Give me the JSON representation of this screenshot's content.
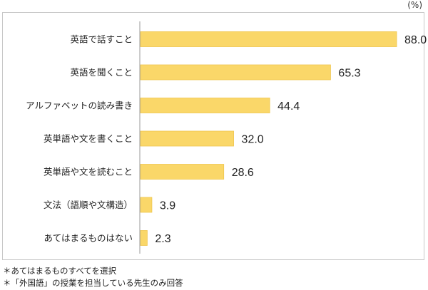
{
  "unit_label": "(%)",
  "notes": [
    "＊あてはまるものすべてを選択",
    "＊「外国語」の授業を担当している先生のみ回答"
  ],
  "colors": {
    "bar": "#FAD769",
    "bar_edge": "#EFC64E",
    "axis": "#9a9a9a",
    "frame": "#c8c8c8"
  },
  "chart_data": {
    "type": "bar",
    "orientation": "horizontal",
    "title": "",
    "xlabel": "",
    "ylabel": "",
    "unit": "%",
    "xlim": [
      0,
      100
    ],
    "grid": false,
    "categories": [
      "英語で話すこと",
      "英語を聞くこと",
      "アルファベットの読み書き",
      "英単語や文を書くこと",
      "英単語や文を読むこと",
      "文法（語順や文構造）",
      "あてはまるものはない"
    ],
    "values": [
      88.0,
      65.3,
      44.4,
      32.0,
      28.6,
      3.9,
      2.3
    ],
    "value_labels": [
      "88.0",
      "65.3",
      "44.4",
      "32.0",
      "28.6",
      "3.9",
      "2.3"
    ]
  }
}
